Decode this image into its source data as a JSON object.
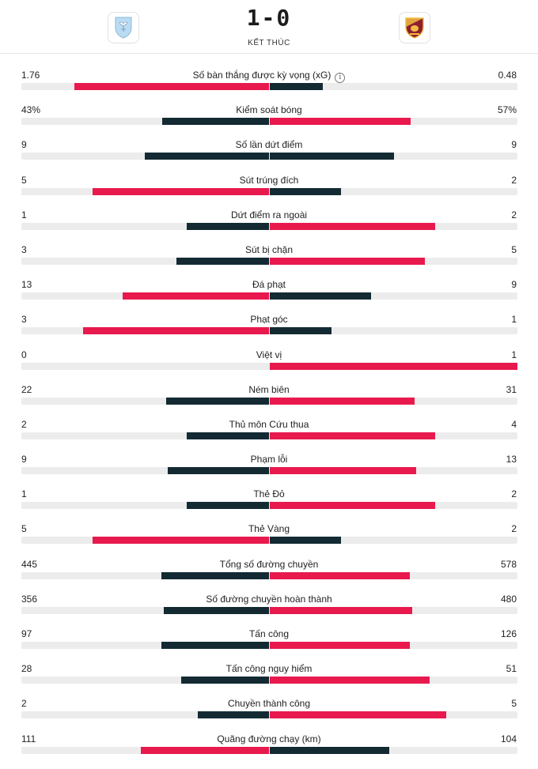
{
  "match": {
    "score": "1-0",
    "status": "KẾT THÚC",
    "home_logo_icon": "lazio-crest-icon",
    "away_logo_icon": "roma-crest-icon"
  },
  "colors": {
    "leader": "#e8194d",
    "trailer": "#132a33",
    "track": "#ececec"
  },
  "stats": [
    {
      "label": "Số bàn thắng được kỳ vọng (xG)",
      "home": "1.76",
      "away": "0.48",
      "home_share": 0.786,
      "away_share": 0.214,
      "info": true
    },
    {
      "label": "Kiểm soát bóng",
      "home": "43%",
      "away": "57%",
      "home_share": 0.43,
      "away_share": 0.57
    },
    {
      "label": "Số lần dứt điểm",
      "home": "9",
      "away": "9",
      "home_share": 0.5,
      "away_share": 0.5
    },
    {
      "label": "Sút trúng đích",
      "home": "5",
      "away": "2",
      "home_share": 0.714,
      "away_share": 0.286
    },
    {
      "label": "Dứt điểm ra ngoài",
      "home": "1",
      "away": "2",
      "home_share": 0.333,
      "away_share": 0.667
    },
    {
      "label": "Sút bị chặn",
      "home": "3",
      "away": "5",
      "home_share": 0.375,
      "away_share": 0.625
    },
    {
      "label": "Đá phạt",
      "home": "13",
      "away": "9",
      "home_share": 0.591,
      "away_share": 0.409
    },
    {
      "label": "Phạt góc",
      "home": "3",
      "away": "1",
      "home_share": 0.75,
      "away_share": 0.25
    },
    {
      "label": "Việt vị",
      "home": "0",
      "away": "1",
      "home_share": 0.0,
      "away_share": 1.0
    },
    {
      "label": "Ném biên",
      "home": "22",
      "away": "31",
      "home_share": 0.415,
      "away_share": 0.585
    },
    {
      "label": "Thủ môn Cứu thua",
      "home": "2",
      "away": "4",
      "home_share": 0.333,
      "away_share": 0.667
    },
    {
      "label": "Phạm lỗi",
      "home": "9",
      "away": "13",
      "home_share": 0.409,
      "away_share": 0.591
    },
    {
      "label": "Thẻ Đỏ",
      "home": "1",
      "away": "2",
      "home_share": 0.333,
      "away_share": 0.667
    },
    {
      "label": "Thẻ Vàng",
      "home": "5",
      "away": "2",
      "home_share": 0.714,
      "away_share": 0.286
    },
    {
      "label": "Tổng số đường chuyền",
      "home": "445",
      "away": "578",
      "home_share": 0.435,
      "away_share": 0.565
    },
    {
      "label": "Số đường chuyền hoàn thành",
      "home": "356",
      "away": "480",
      "home_share": 0.426,
      "away_share": 0.574
    },
    {
      "label": "Tấn công",
      "home": "97",
      "away": "126",
      "home_share": 0.435,
      "away_share": 0.565
    },
    {
      "label": "Tấn công nguy hiểm",
      "home": "28",
      "away": "51",
      "home_share": 0.354,
      "away_share": 0.646
    },
    {
      "label": "Chuyền thành công",
      "home": "2",
      "away": "5",
      "home_share": 0.286,
      "away_share": 0.714
    },
    {
      "label": "Quãng đường chạy (km)",
      "home": "111",
      "away": "104",
      "home_share": 0.516,
      "away_share": 0.484
    }
  ]
}
